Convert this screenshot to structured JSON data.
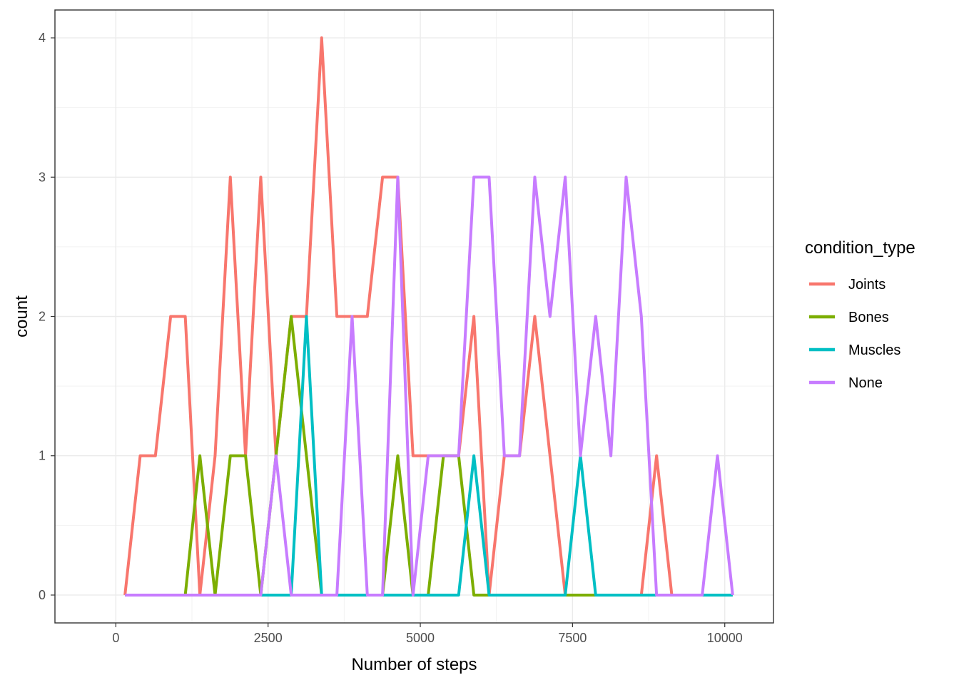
{
  "chart_data": {
    "type": "line",
    "xlabel": "Number of steps",
    "ylabel": "count",
    "xlim": [
      -1000,
      10800
    ],
    "ylim": [
      -0.2,
      4.2
    ],
    "x_ticks": [
      0,
      2500,
      5000,
      7500,
      10000
    ],
    "x_tick_labels": [
      "0",
      "2500",
      "5000",
      "7500",
      "10000"
    ],
    "y_ticks": [
      0,
      1,
      2,
      3,
      4
    ],
    "y_tick_labels": [
      "0",
      "1",
      "2",
      "3",
      "4"
    ],
    "grid": true,
    "legend": {
      "title": "condition_type",
      "position": "right"
    },
    "series": [
      {
        "name": "Joints",
        "color": "#F8766D",
        "points": [
          [
            150,
            0
          ],
          [
            400,
            1
          ],
          [
            650,
            1
          ],
          [
            900,
            2
          ],
          [
            1140,
            2
          ],
          [
            1380,
            0
          ],
          [
            1630,
            1
          ],
          [
            1880,
            3
          ],
          [
            2130,
            1
          ],
          [
            2380,
            3
          ],
          [
            2630,
            1
          ],
          [
            2880,
            2
          ],
          [
            3130,
            2
          ],
          [
            3380,
            4
          ],
          [
            3630,
            2
          ],
          [
            3880,
            2
          ],
          [
            4130,
            2
          ],
          [
            4380,
            3
          ],
          [
            4630,
            3
          ],
          [
            4880,
            1
          ],
          [
            5130,
            1
          ],
          [
            5380,
            1
          ],
          [
            5630,
            1
          ],
          [
            5880,
            2
          ],
          [
            6130,
            0
          ],
          [
            6380,
            1
          ],
          [
            6630,
            1
          ],
          [
            6880,
            2
          ],
          [
            7130,
            1
          ],
          [
            7380,
            0
          ],
          [
            7630,
            0
          ],
          [
            7880,
            0
          ],
          [
            8130,
            0
          ],
          [
            8380,
            0
          ],
          [
            8630,
            0
          ],
          [
            8880,
            1
          ],
          [
            9130,
            0
          ],
          [
            9380,
            0
          ],
          [
            9630,
            0
          ],
          [
            9880,
            0
          ],
          [
            10130,
            0
          ]
        ]
      },
      {
        "name": "Bones",
        "color": "#7CAE00",
        "points": [
          [
            150,
            0
          ],
          [
            400,
            0
          ],
          [
            650,
            0
          ],
          [
            900,
            0
          ],
          [
            1140,
            0
          ],
          [
            1380,
            1
          ],
          [
            1630,
            0
          ],
          [
            1880,
            1
          ],
          [
            2130,
            1
          ],
          [
            2380,
            0
          ],
          [
            2630,
            1
          ],
          [
            2880,
            2
          ],
          [
            3130,
            1
          ],
          [
            3380,
            0
          ],
          [
            3630,
            0
          ],
          [
            3880,
            0
          ],
          [
            4130,
            0
          ],
          [
            4380,
            0
          ],
          [
            4630,
            1
          ],
          [
            4880,
            0
          ],
          [
            5130,
            0
          ],
          [
            5380,
            1
          ],
          [
            5630,
            1
          ],
          [
            5880,
            0
          ],
          [
            6130,
            0
          ],
          [
            6380,
            0
          ],
          [
            6630,
            0
          ],
          [
            6880,
            0
          ],
          [
            7130,
            0
          ],
          [
            7380,
            0
          ],
          [
            7630,
            0
          ],
          [
            7880,
            0
          ]
        ]
      },
      {
        "name": "Muscles",
        "color": "#00BFC4",
        "points": [
          [
            2380,
            0
          ],
          [
            2630,
            0
          ],
          [
            2880,
            0
          ],
          [
            3130,
            2
          ],
          [
            3380,
            0
          ],
          [
            3630,
            0
          ],
          [
            3880,
            0
          ],
          [
            4130,
            0
          ],
          [
            4380,
            0
          ],
          [
            4630,
            0
          ],
          [
            4880,
            0
          ],
          [
            5130,
            0
          ],
          [
            5380,
            0
          ],
          [
            5630,
            0
          ],
          [
            5880,
            1
          ],
          [
            6130,
            0
          ],
          [
            6380,
            0
          ],
          [
            6630,
            0
          ],
          [
            6880,
            0
          ],
          [
            7130,
            0
          ],
          [
            7380,
            0
          ],
          [
            7630,
            1
          ],
          [
            7880,
            0
          ],
          [
            8130,
            0
          ],
          [
            8380,
            0
          ],
          [
            8630,
            0
          ],
          [
            8880,
            0
          ],
          [
            9130,
            0
          ],
          [
            9380,
            0
          ],
          [
            9630,
            0
          ],
          [
            9880,
            0
          ],
          [
            10130,
            0
          ]
        ]
      },
      {
        "name": "None",
        "color": "#C77CFF",
        "points": [
          [
            150,
            0
          ],
          [
            400,
            0
          ],
          [
            650,
            0
          ],
          [
            900,
            0
          ],
          [
            1140,
            0
          ],
          [
            1380,
            0
          ],
          [
            1630,
            0
          ],
          [
            1880,
            0
          ],
          [
            2130,
            0
          ],
          [
            2380,
            0
          ],
          [
            2630,
            1
          ],
          [
            2880,
            0
          ],
          [
            3130,
            0
          ],
          [
            3380,
            0
          ],
          [
            3630,
            0
          ],
          [
            3880,
            2
          ],
          [
            4130,
            0
          ],
          [
            4380,
            0
          ],
          [
            4630,
            3
          ],
          [
            4880,
            0
          ],
          [
            5130,
            1
          ],
          [
            5380,
            1
          ],
          [
            5630,
            1
          ],
          [
            5880,
            3
          ],
          [
            6130,
            3
          ],
          [
            6380,
            1
          ],
          [
            6630,
            1
          ],
          [
            6880,
            3
          ],
          [
            7130,
            2
          ],
          [
            7380,
            3
          ],
          [
            7630,
            1
          ],
          [
            7880,
            2
          ],
          [
            8130,
            1
          ],
          [
            8380,
            3
          ],
          [
            8630,
            2
          ],
          [
            8880,
            0
          ],
          [
            9130,
            0
          ],
          [
            9380,
            0
          ],
          [
            9630,
            0
          ],
          [
            9880,
            1
          ],
          [
            10130,
            0
          ]
        ]
      }
    ]
  }
}
